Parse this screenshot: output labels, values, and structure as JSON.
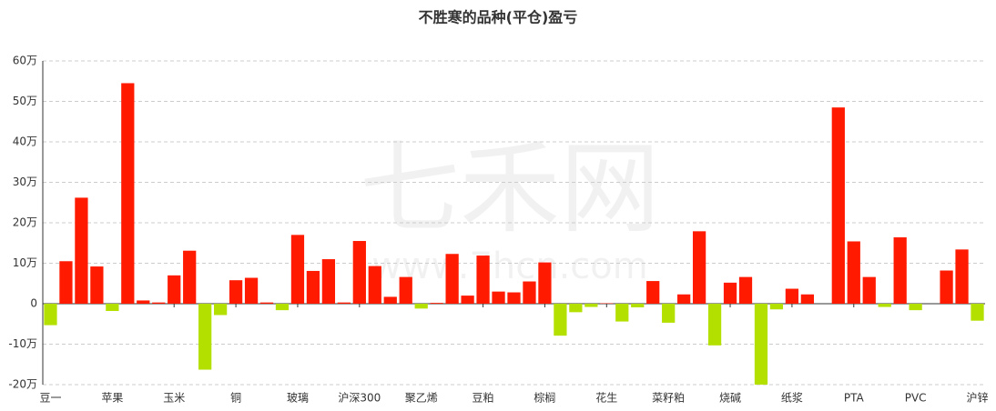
{
  "chart_data": {
    "type": "bar",
    "title": "不胜寒的品种(平仓)盈亏",
    "watermark": {
      "text": "七禾网",
      "url": "www.7hcn.com"
    },
    "categories": [
      "豆一",
      null,
      null,
      null,
      "苹果",
      null,
      null,
      null,
      "玉米",
      null,
      null,
      null,
      "铜",
      null,
      null,
      null,
      "玻璃",
      null,
      null,
      null,
      "沪深300",
      null,
      null,
      null,
      "聚乙烯",
      null,
      null,
      null,
      "豆粕",
      null,
      null,
      null,
      "棕榈",
      null,
      null,
      null,
      "花生",
      null,
      null,
      null,
      "菜籽粕",
      null,
      null,
      null,
      "烧碱",
      null,
      null,
      null,
      "纸浆",
      null,
      null,
      null,
      "PTA",
      null,
      null,
      null,
      "PVC",
      null,
      null,
      null,
      "沪锌"
    ],
    "values": [
      -5.3,
      10.5,
      26.2,
      9.2,
      -1.8,
      54.5,
      0.8,
      0.3,
      7.0,
      13.1,
      -16.3,
      -2.8,
      5.8,
      6.4,
      0.3,
      -1.6,
      17.0,
      8.1,
      11.0,
      0.3,
      15.5,
      9.3,
      1.7,
      6.6,
      -1.2,
      0.2,
      12.3,
      2.0,
      11.9,
      3.0,
      2.8,
      5.5,
      10.2,
      -7.9,
      -2.1,
      -0.8,
      0.1,
      -4.4,
      -0.9,
      5.6,
      -4.7,
      2.3,
      17.9,
      -10.3,
      5.2,
      6.6,
      -20.0,
      -1.4,
      3.7,
      2.3,
      0,
      48.5,
      15.4,
      6.6,
      -0.8,
      16.4,
      -1.6,
      0,
      8.2,
      13.4,
      -4.2
    ],
    "positive_color": "#ff1a00",
    "negative_color": "#b4e000",
    "ylim": [
      -20,
      60
    ],
    "yticks": [
      {
        "value": -20,
        "label": "-20万"
      },
      {
        "value": -10,
        "label": "-10万"
      },
      {
        "value": 0,
        "label": "0"
      },
      {
        "value": 10,
        "label": "10万"
      },
      {
        "value": 20,
        "label": "20万"
      },
      {
        "value": 30,
        "label": "30万"
      },
      {
        "value": 40,
        "label": "40万"
      },
      {
        "value": 50,
        "label": "50万"
      },
      {
        "value": 60,
        "label": "60万"
      }
    ],
    "grid": true
  }
}
